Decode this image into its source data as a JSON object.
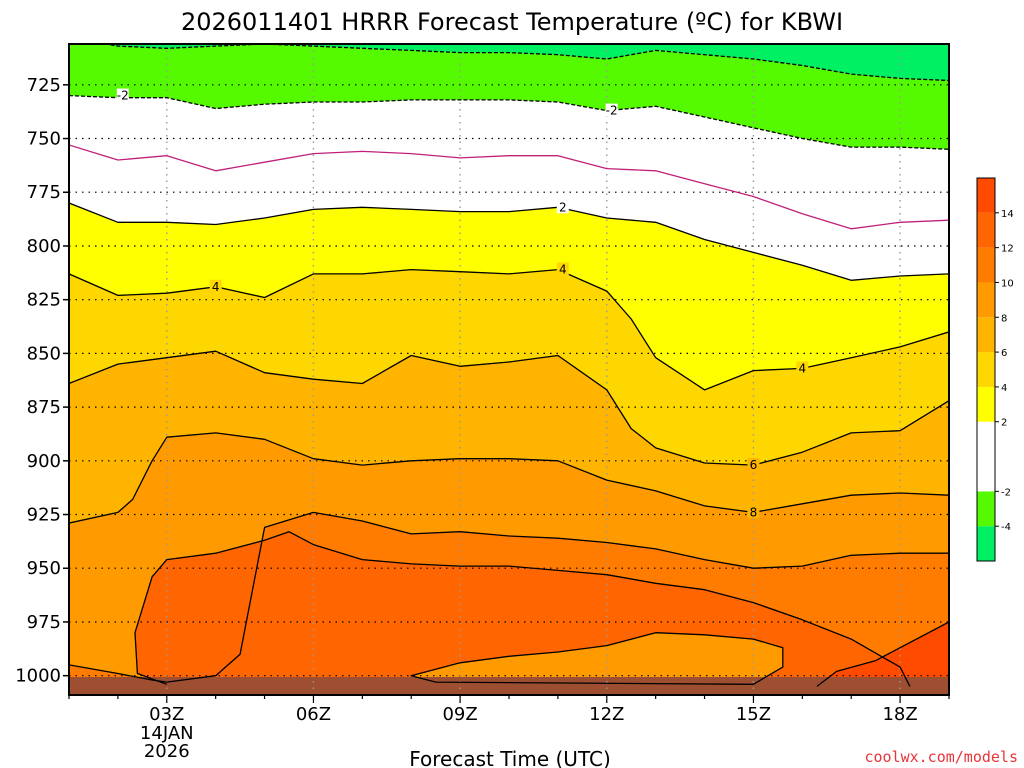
{
  "chart_data": {
    "type": "contour",
    "title": "2026011401 HRRR Forecast Temperature (ºC) for KBWI",
    "xlabel": "Forecast Time (UTC)",
    "ylabel": "",
    "x_range": [
      1,
      19
    ],
    "y_range": [
      706,
      1009
    ],
    "y_axis_inverted": true,
    "x_ticks": [
      {
        "value": 3,
        "label": "03Z",
        "sub1": "14JAN",
        "sub2": "2026"
      },
      {
        "value": 6,
        "label": "06Z"
      },
      {
        "value": 9,
        "label": "09Z"
      },
      {
        "value": 12,
        "label": "12Z"
      },
      {
        "value": 15,
        "label": "15Z"
      },
      {
        "value": 18,
        "label": "18Z"
      }
    ],
    "y_ticks": [
      725,
      750,
      775,
      800,
      825,
      850,
      875,
      900,
      925,
      950,
      975,
      1000
    ],
    "fill_bands": [
      {
        "min": -6,
        "max": -4,
        "color": "#00f064"
      },
      {
        "min": -4,
        "max": -2,
        "color": "#55fa00"
      },
      {
        "min": -2,
        "max": 2,
        "color": "#ffffff"
      },
      {
        "min": 2,
        "max": 4,
        "color": "#ffff00"
      },
      {
        "min": 4,
        "max": 6,
        "color": "#ffd700"
      },
      {
        "min": 6,
        "max": 8,
        "color": "#ffb400"
      },
      {
        "min": 8,
        "max": 10,
        "color": "#ff9b00"
      },
      {
        "min": 10,
        "max": 12,
        "color": "#ff7c00"
      },
      {
        "min": 12,
        "max": 14,
        "color": "#ff6500"
      },
      {
        "min": 14,
        "max": 16,
        "color": "#ff4b00"
      }
    ],
    "colorbar_ticks": [
      -4,
      -2,
      2,
      4,
      6,
      8,
      10,
      12,
      14
    ],
    "isotherms": [
      {
        "level": -4,
        "style": "dashed",
        "points": [
          [
            1,
            703
          ],
          [
            2,
            707
          ],
          [
            3,
            708
          ],
          [
            4,
            707
          ],
          [
            5,
            706
          ],
          [
            6,
            707
          ],
          [
            7,
            708
          ],
          [
            8,
            709
          ],
          [
            9,
            710
          ],
          [
            10,
            710
          ],
          [
            11,
            711
          ],
          [
            12,
            713
          ],
          [
            13,
            709
          ],
          [
            14,
            711
          ],
          [
            15,
            713
          ],
          [
            16,
            716
          ],
          [
            17,
            720
          ],
          [
            18,
            722
          ],
          [
            19,
            723
          ]
        ]
      },
      {
        "level": -2,
        "style": "dashed",
        "points": [
          [
            1,
            730
          ],
          [
            2,
            731
          ],
          [
            3,
            731
          ],
          [
            4,
            736
          ],
          [
            5,
            734
          ],
          [
            6,
            733
          ],
          [
            7,
            733
          ],
          [
            8,
            732
          ],
          [
            9,
            732
          ],
          [
            10,
            732
          ],
          [
            11,
            733
          ],
          [
            12,
            737
          ],
          [
            13,
            735
          ],
          [
            14,
            740
          ],
          [
            15,
            745
          ],
          [
            16,
            750
          ],
          [
            17,
            754
          ],
          [
            18,
            754
          ],
          [
            19,
            755
          ]
        ]
      },
      {
        "level": 0,
        "style": "solid",
        "color": "#c0207a",
        "points": [
          [
            1,
            753
          ],
          [
            2,
            760
          ],
          [
            3,
            758
          ],
          [
            4,
            765
          ],
          [
            5,
            761
          ],
          [
            6,
            757
          ],
          [
            7,
            756
          ],
          [
            8,
            757
          ],
          [
            9,
            759
          ],
          [
            10,
            758
          ],
          [
            11,
            758
          ],
          [
            12,
            764
          ],
          [
            13,
            765
          ],
          [
            14,
            771
          ],
          [
            15,
            777
          ],
          [
            16,
            785
          ],
          [
            17,
            792
          ],
          [
            18,
            789
          ],
          [
            19,
            788
          ]
        ]
      },
      {
        "level": 2,
        "style": "solid",
        "points": [
          [
            1,
            780
          ],
          [
            2,
            789
          ],
          [
            3,
            789
          ],
          [
            4,
            790
          ],
          [
            5,
            787
          ],
          [
            6,
            783
          ],
          [
            7,
            782
          ],
          [
            8,
            783
          ],
          [
            9,
            784
          ],
          [
            10,
            784
          ],
          [
            11,
            782
          ],
          [
            12,
            787
          ],
          [
            13,
            789
          ],
          [
            14,
            797
          ],
          [
            15,
            803
          ],
          [
            16,
            809
          ],
          [
            17,
            816
          ],
          [
            18,
            814
          ],
          [
            19,
            813
          ]
        ]
      },
      {
        "level": 4,
        "style": "solid",
        "points": [
          [
            1,
            813
          ],
          [
            2,
            823
          ],
          [
            3,
            822
          ],
          [
            4,
            819
          ],
          [
            5,
            824
          ],
          [
            6,
            813
          ],
          [
            7,
            813
          ],
          [
            8,
            811
          ],
          [
            9,
            812
          ],
          [
            10,
            813
          ],
          [
            11,
            811
          ],
          [
            12,
            821
          ],
          [
            12.5,
            834
          ],
          [
            13,
            852
          ],
          [
            14,
            867
          ],
          [
            15,
            858
          ],
          [
            16,
            857
          ],
          [
            17,
            852
          ],
          [
            18,
            847
          ],
          [
            19,
            840
          ]
        ]
      },
      {
        "level": 6,
        "style": "solid",
        "points": [
          [
            1,
            864
          ],
          [
            2,
            855
          ],
          [
            3,
            852
          ],
          [
            4,
            849
          ],
          [
            5,
            859
          ],
          [
            6,
            862
          ],
          [
            7,
            864
          ],
          [
            8,
            851
          ],
          [
            9,
            856
          ],
          [
            10,
            854
          ],
          [
            11,
            851
          ],
          [
            12,
            867
          ],
          [
            12.5,
            885
          ],
          [
            13,
            894
          ],
          [
            14,
            901
          ],
          [
            15,
            902
          ],
          [
            16,
            896
          ],
          [
            17,
            887
          ],
          [
            18,
            886
          ],
          [
            19,
            872
          ]
        ]
      },
      {
        "level": 8,
        "style": "solid",
        "points": [
          [
            1,
            929
          ],
          [
            2,
            924
          ],
          [
            2.3,
            918
          ],
          [
            2.7,
            900
          ],
          [
            3,
            889
          ],
          [
            4,
            887
          ],
          [
            5,
            890
          ],
          [
            6,
            899
          ],
          [
            7,
            902
          ],
          [
            8,
            900
          ],
          [
            9,
            899
          ],
          [
            10,
            899
          ],
          [
            11,
            900
          ],
          [
            12,
            909
          ],
          [
            13,
            914
          ],
          [
            14,
            921
          ],
          [
            15,
            924
          ],
          [
            16,
            920
          ],
          [
            17,
            916
          ],
          [
            18,
            915
          ],
          [
            19,
            916
          ]
        ]
      },
      {
        "level": 10,
        "style": "solid",
        "points": [
          [
            1,
            995
          ],
          [
            2,
            999
          ],
          [
            2.7,
            1002
          ],
          [
            3,
            1003
          ],
          [
            4,
            1000
          ],
          [
            4.5,
            990
          ],
          [
            5,
            931
          ],
          [
            6,
            924
          ],
          [
            7,
            928
          ],
          [
            8,
            934
          ],
          [
            9,
            933
          ],
          [
            10,
            935
          ],
          [
            11,
            936
          ],
          [
            12,
            938
          ],
          [
            13,
            941
          ],
          [
            14,
            946
          ],
          [
            15,
            950
          ],
          [
            16,
            949
          ],
          [
            17,
            944
          ],
          [
            18,
            943
          ],
          [
            19,
            943
          ]
        ]
      },
      {
        "level": 12,
        "style": "solid",
        "points": [
          [
            3,
            1004
          ],
          [
            2.4,
            999
          ],
          [
            2.35,
            980
          ],
          [
            2.7,
            954
          ],
          [
            3,
            946
          ],
          [
            4,
            943
          ],
          [
            5,
            937
          ],
          [
            5.5,
            933
          ],
          [
            6,
            939
          ],
          [
            7,
            946
          ],
          [
            8,
            948
          ],
          [
            9,
            949
          ],
          [
            10,
            949
          ],
          [
            11,
            951
          ],
          [
            12,
            953
          ],
          [
            13,
            957
          ],
          [
            14,
            960
          ],
          [
            15,
            966
          ],
          [
            16,
            974
          ],
          [
            17,
            983
          ],
          [
            18,
            996
          ],
          [
            18.2,
            1005
          ]
        ]
      },
      {
        "level": 10,
        "style": "solid",
        "closed": true,
        "points": [
          [
            8.5,
            1003
          ],
          [
            8,
            1000
          ],
          [
            9,
            994
          ],
          [
            10,
            991
          ],
          [
            11,
            989
          ],
          [
            12,
            986
          ],
          [
            13,
            980
          ],
          [
            14,
            981
          ],
          [
            15,
            983
          ],
          [
            15.6,
            987
          ],
          [
            15.6,
            996
          ],
          [
            15,
            1004
          ]
        ]
      },
      {
        "level": 14,
        "style": "solid",
        "points": [
          [
            16.3,
            1005
          ],
          [
            16.7,
            998
          ],
          [
            17.5,
            993
          ],
          [
            18,
            987
          ],
          [
            19,
            975
          ]
        ]
      }
    ],
    "contour_labels": [
      {
        "text": "-2",
        "x": 2.1,
        "y": 730
      },
      {
        "text": "-2",
        "x": 12.1,
        "y": 737
      },
      {
        "text": "2",
        "x": 11.1,
        "y": 782
      },
      {
        "text": "4",
        "x": 4,
        "y": 819
      },
      {
        "text": "4",
        "x": 11.1,
        "y": 811
      },
      {
        "text": "4",
        "x": 16,
        "y": 857
      },
      {
        "text": "6",
        "x": 15,
        "y": 902
      },
      {
        "text": "8",
        "x": 15,
        "y": 924
      }
    ],
    "credit": "coolwx.com/models"
  },
  "colors": {
    "terrain": "#9e4f31",
    "axis": "#000000",
    "grid_h": "#000000",
    "grid_v": "#9a9a9a",
    "isotherm": "#000000",
    "zero_isotherm": "#c0207a",
    "credit": "#e8353a"
  }
}
